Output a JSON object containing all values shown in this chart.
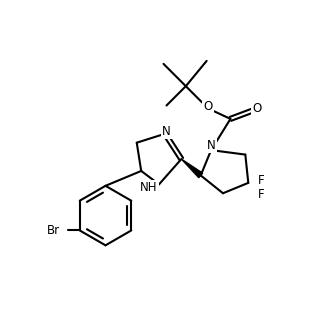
{
  "background": "#ffffff",
  "bond_color": "#000000",
  "bond_lw": 1.5,
  "font_size": 8.5,
  "figsize": [
    3.3,
    3.3
  ],
  "dpi": 100,
  "xlim": [
    -0.5,
    10.5
  ],
  "ylim": [
    -0.5,
    10.5
  ]
}
